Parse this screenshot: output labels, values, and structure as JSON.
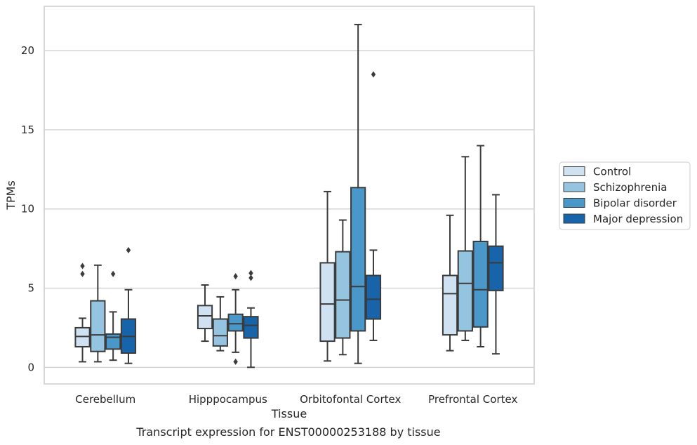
{
  "caption": "Transcript expression for ENST00000253188 by tissue",
  "chart_data": {
    "type": "boxplot",
    "xlabel": "Tissue",
    "ylabel": "TPMs",
    "ylim": [
      -1.05,
      22.8
    ],
    "yticks": [
      0,
      5,
      10,
      15,
      20
    ],
    "grid": "horizontal",
    "legend_position": "right",
    "categories": [
      "Cerebellum",
      "Hipppocampus",
      "Orbitofontal Cortex",
      "Prefrontal Cortex"
    ],
    "series": [
      {
        "name": "Control",
        "color": "#d0e1f2",
        "boxes": [
          {
            "whislo": 0.35,
            "q1": 1.3,
            "med": 1.95,
            "q3": 2.5,
            "whishi": 3.1,
            "fliers": [
              5.9,
              6.4
            ]
          },
          {
            "whislo": 1.65,
            "q1": 2.45,
            "med": 3.25,
            "q3": 3.9,
            "whishi": 5.2,
            "fliers": []
          },
          {
            "whislo": 0.4,
            "q1": 1.65,
            "med": 4.0,
            "q3": 6.6,
            "whishi": 11.1,
            "fliers": []
          },
          {
            "whislo": 1.05,
            "q1": 2.05,
            "med": 4.65,
            "q3": 5.8,
            "whishi": 9.6,
            "fliers": []
          }
        ]
      },
      {
        "name": "Schizophrenia",
        "color": "#94c4df",
        "boxes": [
          {
            "whislo": 0.35,
            "q1": 1.0,
            "med": 2.05,
            "q3": 4.2,
            "whishi": 6.45,
            "fliers": []
          },
          {
            "whislo": 1.05,
            "q1": 1.35,
            "med": 2.0,
            "q3": 3.05,
            "whishi": 4.45,
            "fliers": []
          },
          {
            "whislo": 0.8,
            "q1": 1.85,
            "med": 4.25,
            "q3": 7.3,
            "whishi": 9.3,
            "fliers": []
          },
          {
            "whislo": 1.7,
            "q1": 2.3,
            "med": 5.3,
            "q3": 7.35,
            "whishi": 13.3,
            "fliers": []
          }
        ]
      },
      {
        "name": "Bipolar disorder",
        "color": "#4a98c9",
        "boxes": [
          {
            "whislo": 0.45,
            "q1": 1.15,
            "med": 1.9,
            "q3": 2.1,
            "whishi": 3.5,
            "fliers": [
              5.9
            ]
          },
          {
            "whislo": 0.95,
            "q1": 2.3,
            "med": 2.75,
            "q3": 3.35,
            "whishi": 4.9,
            "fliers": [
              0.35,
              5.75
            ]
          },
          {
            "whislo": 0.25,
            "q1": 2.3,
            "med": 5.1,
            "q3": 11.35,
            "whishi": 21.65,
            "fliers": []
          },
          {
            "whislo": 1.3,
            "q1": 2.55,
            "med": 4.9,
            "q3": 7.95,
            "whishi": 14.0,
            "fliers": []
          }
        ]
      },
      {
        "name": "Major depression",
        "color": "#1764ab",
        "boxes": [
          {
            "whislo": 0.25,
            "q1": 0.9,
            "med": 1.95,
            "q3": 3.05,
            "whishi": 4.9,
            "fliers": [
              7.4
            ]
          },
          {
            "whislo": 0.0,
            "q1": 1.85,
            "med": 2.65,
            "q3": 3.2,
            "whishi": 3.75,
            "fliers": [
              5.65,
              5.95
            ]
          },
          {
            "whislo": 1.7,
            "q1": 3.05,
            "med": 4.3,
            "q3": 5.8,
            "whishi": 7.4,
            "fliers": [
              18.5
            ]
          },
          {
            "whislo": 0.85,
            "q1": 4.85,
            "med": 6.6,
            "q3": 7.65,
            "whishi": 10.9,
            "fliers": []
          }
        ]
      }
    ]
  }
}
